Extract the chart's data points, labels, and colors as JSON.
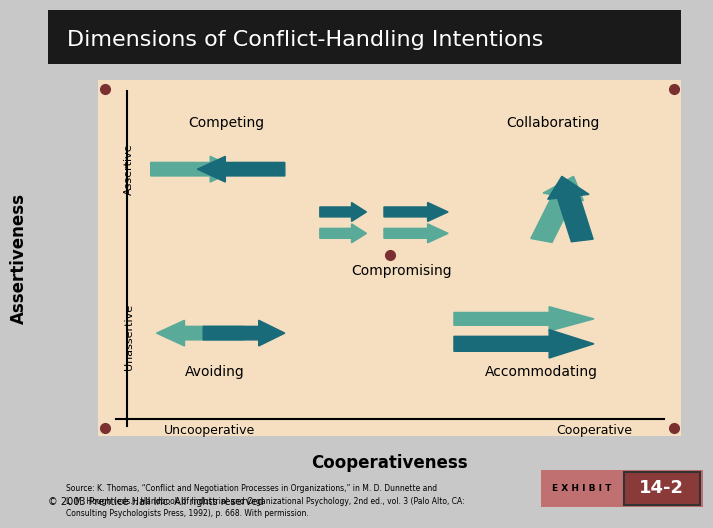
{
  "title": "Dimensions of Conflict-Handling Intentions",
  "title_bg": "#1a1a1a",
  "title_color": "#ffffff",
  "bg_color": "#f5dfc0",
  "page_bg": "#c8c8c8",
  "teal_dark": "#1a6b7a",
  "teal_light": "#5aaa99",
  "brown_dot": "#7a3030",
  "axis_label_assertiveness": "Assertiveness",
  "axis_label_cooperativeness": "Cooperativeness",
  "label_assertive": "Assertive",
  "label_unassertive": "Unassertive",
  "label_uncooperative": "Uncooperative",
  "label_cooperative": "Cooperative",
  "label_competing": "Competing",
  "label_collaborating": "Collaborating",
  "label_compromising": "Compromising",
  "label_avoiding": "Avoiding",
  "label_accommodating": "Accommodating",
  "source_text": "Source: K. Thomas, “Conflict and Negotiation Processes in Organizations,” in M. D. Dunnette and\nL. M. Hough (eds.), Handbook of Industrial and Organizational Psychology, 2nd ed., vol. 3 (Palo Alto, CA:\nConsulting Psychologists Press, 1992), p. 668. With permission.",
  "copyright_text": "© 2003 Prentice Hall Inc. All rights reserved",
  "exhibit_label": "E X H I B I T",
  "exhibit_number": "14-2",
  "exhibit_bg": "#c07070",
  "exhibit_number_bg": "#8b3a3a"
}
